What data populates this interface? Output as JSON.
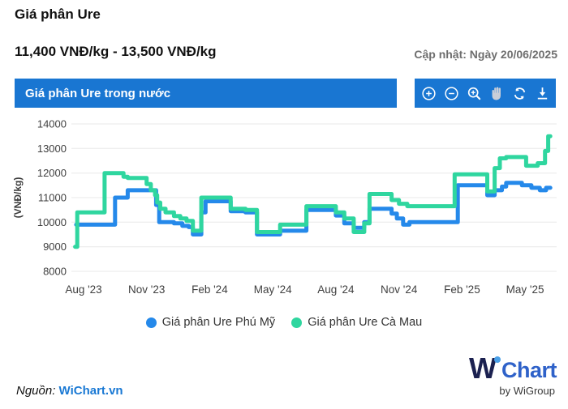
{
  "page": {
    "title": "Giá phân Ure",
    "price_range": "11,400 VNĐ/kg - 13,500 VNĐ/kg",
    "updated": "Cập nhật: Ngày 20/06/2025"
  },
  "chart_card": {
    "title": "Giá phân Ure trong nước",
    "bar_color": "#1976d2",
    "toolbar_icons": [
      "zoom-in",
      "zoom-out",
      "zoom-search",
      "pan-hand",
      "reset",
      "download"
    ]
  },
  "chart_data": {
    "type": "line",
    "step": true,
    "title": "Giá phân Ure trong nước",
    "ylabel": "(VNĐ/kg)",
    "ylim": [
      8000,
      14000
    ],
    "yticks": [
      8000,
      9000,
      10000,
      11000,
      12000,
      13000,
      14000
    ],
    "xlim_months": [
      -0.5,
      22.5
    ],
    "xticks": [
      {
        "t": 0,
        "label": "Aug '23"
      },
      {
        "t": 3,
        "label": "Nov '23"
      },
      {
        "t": 6,
        "label": "Feb '24"
      },
      {
        "t": 9,
        "label": "May '24"
      },
      {
        "t": 12,
        "label": "Aug '24"
      },
      {
        "t": 15,
        "label": "Nov '24"
      },
      {
        "t": 18,
        "label": "Feb '25"
      },
      {
        "t": 21,
        "label": "May '25"
      }
    ],
    "grid": "horizontal",
    "legend_position": "bottom",
    "series": [
      {
        "name": "Giá phân Ure Phú Mỹ",
        "color": "#2589ea",
        "points": [
          [
            -0.35,
            9900
          ],
          [
            1.5,
            11000
          ],
          [
            2.1,
            11300
          ],
          [
            3.3,
            11300
          ],
          [
            3.45,
            10700
          ],
          [
            3.6,
            10000
          ],
          [
            4.3,
            9950
          ],
          [
            4.7,
            9850
          ],
          [
            5.0,
            9800
          ],
          [
            5.2,
            9500
          ],
          [
            5.6,
            10400
          ],
          [
            5.8,
            10850
          ],
          [
            7.0,
            10450
          ],
          [
            7.7,
            10400
          ],
          [
            8.25,
            9500
          ],
          [
            9.35,
            9650
          ],
          [
            10.6,
            10500
          ],
          [
            12.0,
            10270
          ],
          [
            12.4,
            9950
          ],
          [
            12.85,
            9770
          ],
          [
            13.35,
            10000
          ],
          [
            13.6,
            10550
          ],
          [
            14.65,
            10350
          ],
          [
            14.9,
            10150
          ],
          [
            15.2,
            9900
          ],
          [
            15.5,
            10000
          ],
          [
            17.8,
            11500
          ],
          [
            19.2,
            11100
          ],
          [
            19.55,
            11300
          ],
          [
            19.9,
            11450
          ],
          [
            20.1,
            11600
          ],
          [
            20.85,
            11500
          ],
          [
            21.3,
            11400
          ],
          [
            21.7,
            11300
          ],
          [
            22.0,
            11400
          ],
          [
            22.2,
            11400
          ]
        ]
      },
      {
        "name": "Giá phân Ure Cà Mau",
        "color": "#2fd69f",
        "points": [
          [
            -0.4,
            9000
          ],
          [
            -0.3,
            10400
          ],
          [
            1.0,
            12000
          ],
          [
            1.9,
            11850
          ],
          [
            2.1,
            11800
          ],
          [
            3.0,
            11550
          ],
          [
            3.2,
            11300
          ],
          [
            3.4,
            11100
          ],
          [
            3.5,
            10800
          ],
          [
            3.65,
            10550
          ],
          [
            3.9,
            10400
          ],
          [
            4.3,
            10250
          ],
          [
            4.6,
            10150
          ],
          [
            4.9,
            10050
          ],
          [
            5.2,
            9650
          ],
          [
            5.6,
            11000
          ],
          [
            7.0,
            10550
          ],
          [
            7.7,
            10500
          ],
          [
            8.25,
            9600
          ],
          [
            9.35,
            9900
          ],
          [
            10.6,
            10650
          ],
          [
            12.0,
            10400
          ],
          [
            12.4,
            10150
          ],
          [
            12.85,
            9600
          ],
          [
            13.35,
            9950
          ],
          [
            13.6,
            11150
          ],
          [
            14.65,
            10900
          ],
          [
            15.0,
            10750
          ],
          [
            15.4,
            10650
          ],
          [
            17.65,
            11950
          ],
          [
            19.2,
            11250
          ],
          [
            19.55,
            12200
          ],
          [
            19.8,
            12600
          ],
          [
            20.1,
            12650
          ],
          [
            21.05,
            12300
          ],
          [
            21.6,
            12400
          ],
          [
            21.95,
            12900
          ],
          [
            22.1,
            13500
          ],
          [
            22.2,
            13500
          ]
        ]
      }
    ]
  },
  "footer": {
    "source_label": "Nguồn:",
    "source_link": "WiChart.vn",
    "logo_w": "W",
    "logo_chart": "Chart",
    "logo_sub": "by WiGroup"
  }
}
